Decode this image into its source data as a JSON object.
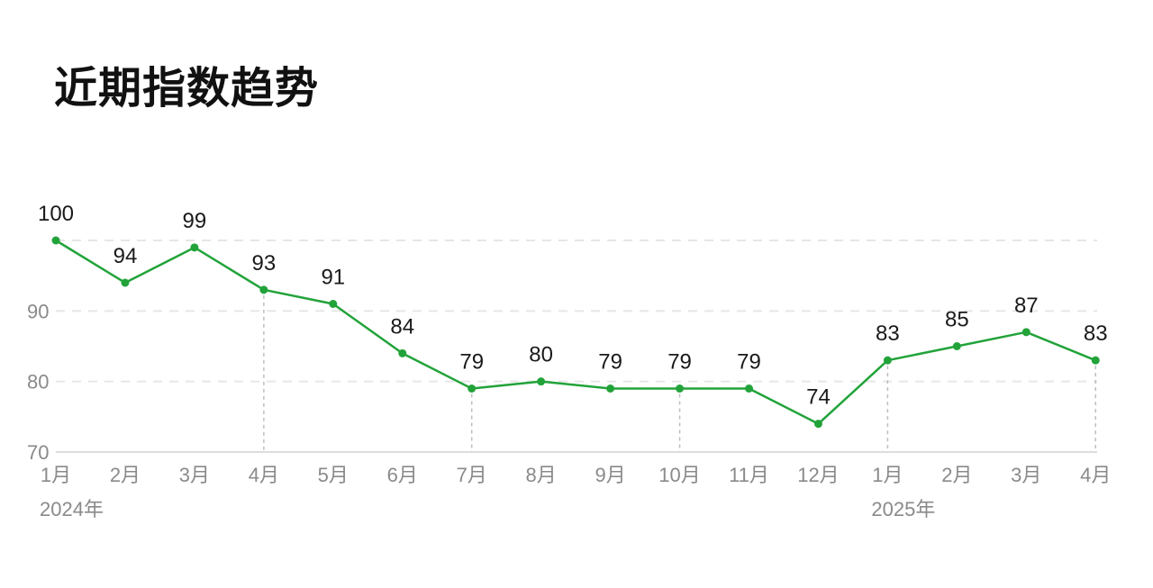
{
  "title": "近期指数趋势",
  "colors": {
    "line": "#22a33a",
    "grid": "#e6e6e6",
    "guide": "#bdbdbd",
    "axis": "#dddddd",
    "tick_text": "#8a8a8a",
    "label_text": "#1a1a1a"
  },
  "chart_data": {
    "type": "line",
    "title": "近期指数趋势",
    "categories": [
      "1月",
      "2月",
      "3月",
      "4月",
      "5月",
      "6月",
      "7月",
      "8月",
      "9月",
      "10月",
      "11月",
      "12月",
      "1月",
      "2月",
      "3月",
      "4月"
    ],
    "values": [
      100,
      94,
      99,
      93,
      91,
      84,
      79,
      80,
      79,
      79,
      79,
      74,
      83,
      85,
      87,
      83
    ],
    "year_labels": [
      {
        "index": 0,
        "text": "2024年"
      },
      {
        "index": 12,
        "text": "2025年"
      }
    ],
    "guide_indices": [
      3,
      6,
      9,
      12,
      15
    ],
    "ylim": [
      70,
      100
    ],
    "yticks": [
      70,
      80,
      90
    ],
    "gridlines": [
      80,
      90,
      100
    ],
    "grid": true,
    "xlabel": "",
    "ylabel": ""
  }
}
